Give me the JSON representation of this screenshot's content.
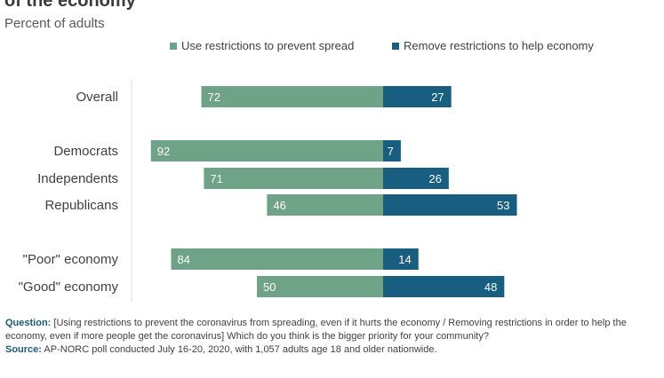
{
  "title": "of the economy",
  "subtitle": "Percent of adults",
  "colors": {
    "restrictions": "#6fa387",
    "remove": "#175e80",
    "label_text": "#ffffff",
    "axis_line": "#d9d9d9"
  },
  "legend": {
    "items": [
      {
        "label": "Use restrictions to prevent spread",
        "color": "#6fa387"
      },
      {
        "label": "Remove restrictions to help economy",
        "color": "#175e80"
      }
    ]
  },
  "chart_data": {
    "type": "bar",
    "orientation": "horizontal-diverging",
    "categories": [
      "Overall",
      "Democrats",
      "Independents",
      "Republicans",
      "\"Poor\" economy",
      "\"Good\" economy"
    ],
    "series": [
      {
        "name": "Use restrictions to prevent spread",
        "values": [
          72,
          92,
          71,
          46,
          84,
          50
        ]
      },
      {
        "name": "Remove restrictions to help economy",
        "values": [
          27,
          7,
          26,
          53,
          14,
          48
        ]
      }
    ],
    "xlim": [
      -100,
      100
    ],
    "grid": false,
    "legend_position": "top"
  },
  "footnote": {
    "question_label": "Question:",
    "question_text": "[Using restrictions to prevent the coronavirus from spreading, even if it hurts the economy / Removing restrictions in order to help the economy, even if more people get the coronavirus] Which do you think is the bigger priority for your community?",
    "source_label": "Source:",
    "source_text": "AP-NORC poll conducted July 16-20, 2020, with 1,057 adults age 18 and older nationwide."
  }
}
